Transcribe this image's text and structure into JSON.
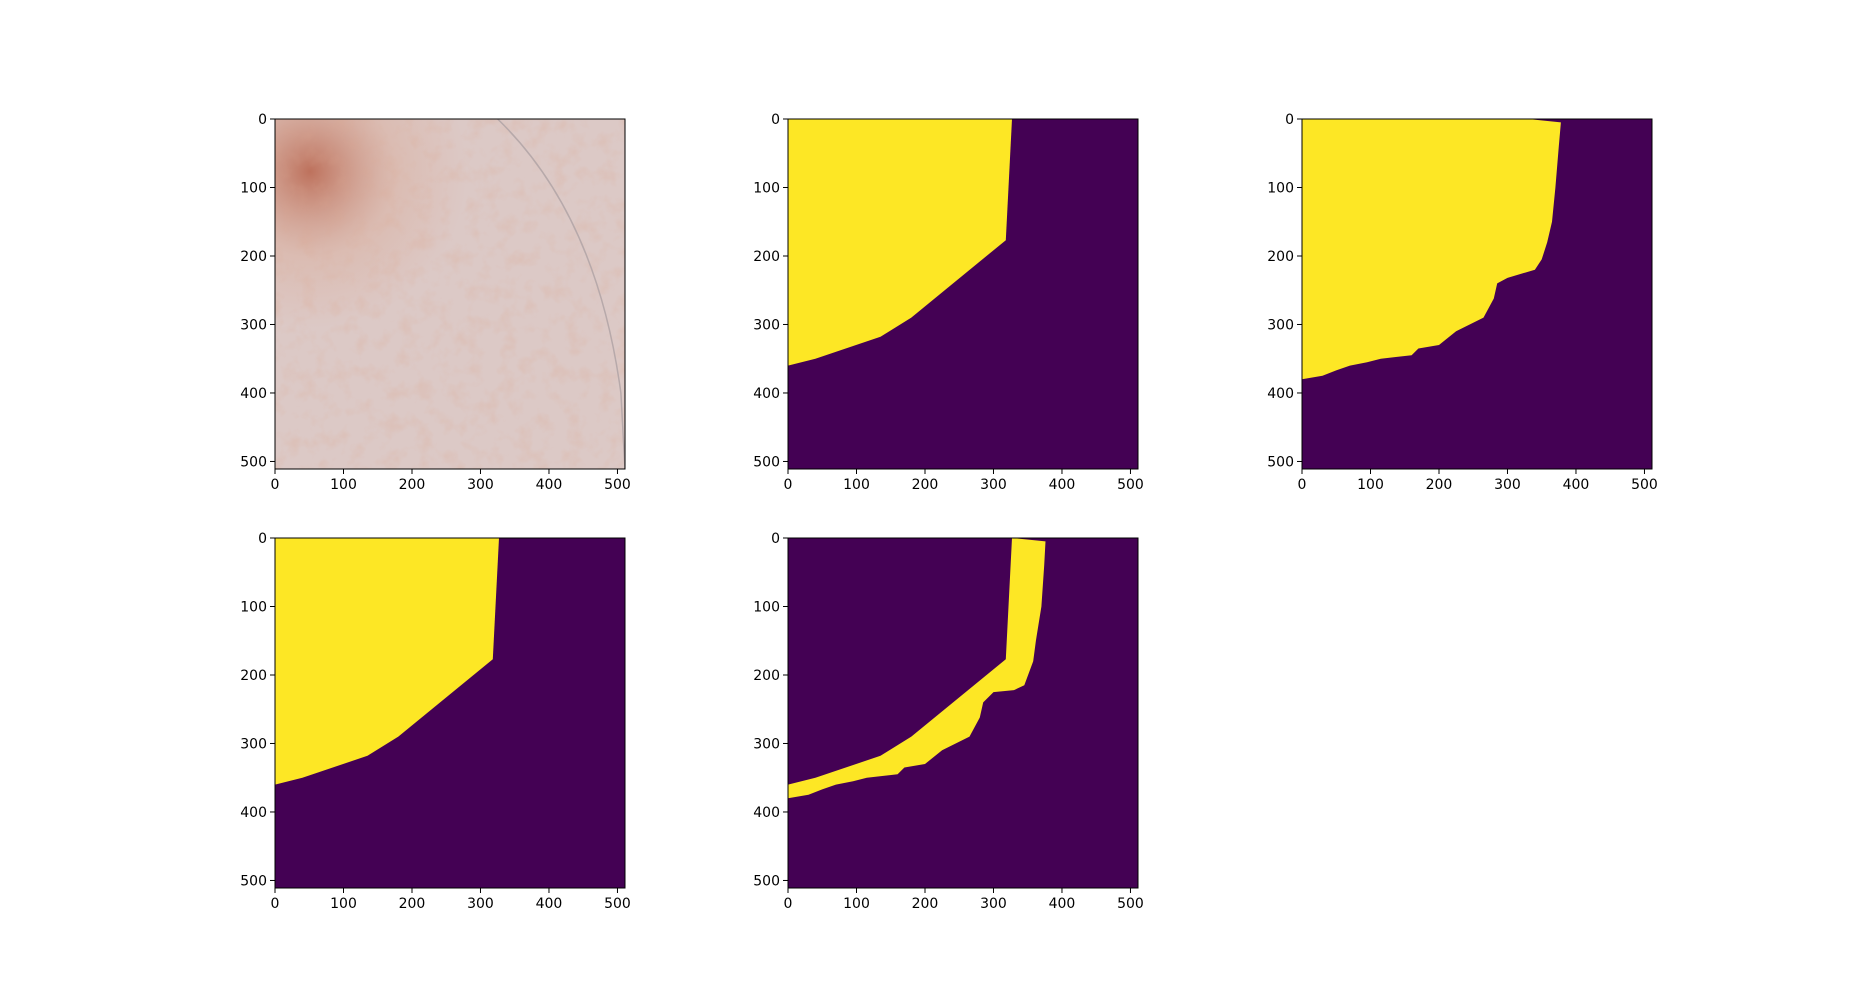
{
  "colors": {
    "mask_on": "#fde725",
    "mask_off": "#440154",
    "skin_base": "#dcc9c6",
    "pigment_dark": "#b8624a",
    "pigment_light": "#d9a48e",
    "axis": "#000000"
  },
  "chart_data": [
    {
      "type": "image",
      "content": "dermoscopy photo",
      "xlim": [
        0,
        511
      ],
      "ylim": [
        511,
        0
      ],
      "xticks": [
        0,
        100,
        200,
        300,
        400,
        500
      ],
      "yticks": [
        0,
        100,
        200,
        300,
        400,
        500
      ],
      "xtick_labels": [
        "0",
        "100",
        "200",
        "300",
        "400",
        "500"
      ],
      "ytick_labels": [
        "0",
        "100",
        "200",
        "300",
        "400",
        "500"
      ],
      "grid": false
    },
    {
      "type": "heatmap",
      "content": "binary mask",
      "xlim": [
        0,
        511
      ],
      "ylim": [
        511,
        0
      ],
      "xticks": [
        0,
        100,
        200,
        300,
        400,
        500
      ],
      "yticks": [
        0,
        100,
        200,
        300,
        400,
        500
      ],
      "xtick_labels": [
        "0",
        "100",
        "200",
        "300",
        "400",
        "500"
      ],
      "ytick_labels": [
        "0",
        "100",
        "200",
        "300",
        "400",
        "500"
      ],
      "grid": false,
      "mask_region": [
        [
          0,
          0
        ],
        [
          327,
          0
        ],
        [
          318,
          177
        ],
        [
          180,
          290
        ],
        [
          135,
          318
        ],
        [
          40,
          350
        ],
        [
          0,
          360
        ]
      ]
    },
    {
      "type": "heatmap",
      "content": "binary mask",
      "xlim": [
        0,
        511
      ],
      "ylim": [
        511,
        0
      ],
      "xticks": [
        0,
        100,
        200,
        300,
        400,
        500
      ],
      "yticks": [
        0,
        100,
        200,
        300,
        400,
        500
      ],
      "xtick_labels": [
        "0",
        "100",
        "200",
        "300",
        "400",
        "500"
      ],
      "ytick_labels": [
        "0",
        "100",
        "200",
        "300",
        "400",
        "500"
      ],
      "grid": false,
      "mask_region": [
        [
          0,
          0
        ],
        [
          330,
          0
        ],
        [
          378,
          5
        ],
        [
          375,
          40
        ],
        [
          370,
          100
        ],
        [
          365,
          150
        ],
        [
          358,
          180
        ],
        [
          350,
          205
        ],
        [
          340,
          220
        ],
        [
          300,
          232
        ],
        [
          285,
          240
        ],
        [
          280,
          262
        ],
        [
          265,
          290
        ],
        [
          225,
          310
        ],
        [
          200,
          330
        ],
        [
          170,
          335
        ],
        [
          160,
          345
        ],
        [
          115,
          350
        ],
        [
          95,
          355
        ],
        [
          70,
          360
        ],
        [
          50,
          367
        ],
        [
          30,
          375
        ],
        [
          0,
          380
        ]
      ]
    },
    {
      "type": "heatmap",
      "content": "binary mask",
      "xlim": [
        0,
        511
      ],
      "ylim": [
        511,
        0
      ],
      "xticks": [
        0,
        100,
        200,
        300,
        400,
        500
      ],
      "yticks": [
        0,
        100,
        200,
        300,
        400,
        500
      ],
      "xtick_labels": [
        "0",
        "100",
        "200",
        "300",
        "400",
        "500"
      ],
      "ytick_labels": [
        "0",
        "100",
        "200",
        "300",
        "400",
        "500"
      ],
      "grid": false,
      "mask_region": [
        [
          0,
          0
        ],
        [
          327,
          0
        ],
        [
          318,
          177
        ],
        [
          180,
          290
        ],
        [
          135,
          318
        ],
        [
          40,
          350
        ],
        [
          0,
          360
        ]
      ]
    },
    {
      "type": "heatmap",
      "content": "binary mask",
      "xlim": [
        0,
        511
      ],
      "ylim": [
        511,
        0
      ],
      "xticks": [
        0,
        100,
        200,
        300,
        400,
        500
      ],
      "yticks": [
        0,
        100,
        200,
        300,
        400,
        500
      ],
      "xtick_labels": [
        "0",
        "100",
        "200",
        "300",
        "400",
        "500"
      ],
      "ytick_labels": [
        "0",
        "100",
        "200",
        "300",
        "400",
        "500"
      ],
      "grid": false,
      "mask_region": [
        [
          327,
          0
        ],
        [
          376,
          5
        ],
        [
          374,
          40
        ],
        [
          370,
          100
        ],
        [
          362,
          150
        ],
        [
          358,
          180
        ],
        [
          345,
          215
        ],
        [
          330,
          222
        ],
        [
          300,
          225
        ],
        [
          285,
          240
        ],
        [
          280,
          262
        ],
        [
          265,
          290
        ],
        [
          225,
          310
        ],
        [
          200,
          330
        ],
        [
          170,
          335
        ],
        [
          160,
          345
        ],
        [
          115,
          350
        ],
        [
          95,
          355
        ],
        [
          70,
          360
        ],
        [
          50,
          367
        ],
        [
          30,
          375
        ],
        [
          0,
          380
        ],
        [
          0,
          360
        ],
        [
          40,
          350
        ],
        [
          135,
          318
        ],
        [
          180,
          290
        ],
        [
          318,
          177
        ]
      ]
    }
  ]
}
